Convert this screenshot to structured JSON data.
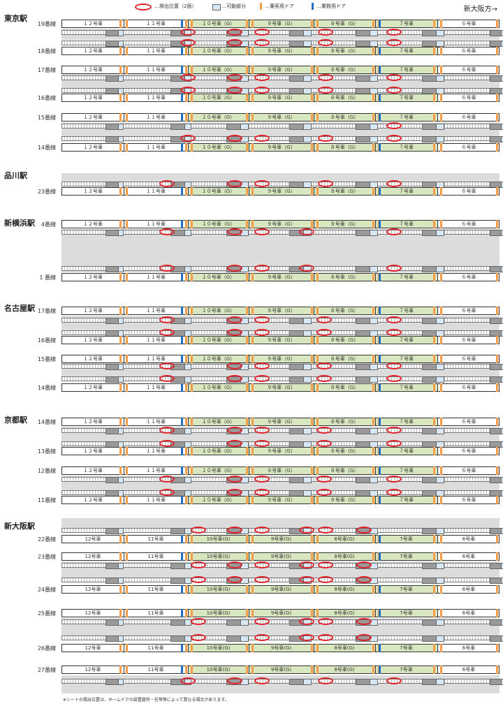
{
  "legend": {
    "exit_position": "…掲出位置（2面）",
    "movable_part": "…可動部分",
    "passenger_door": "…乗客用ドア",
    "staff_door": "…業務用ドア"
  },
  "direction": "新大阪方→",
  "footnote": "※シートの掲出位置は、ホームドアの設置箇所・柱等等によって異なる場合があります。",
  "cars": [
    "１２号車",
    "１１号車",
    "１０号車（G）",
    "９号車（G）",
    "８号車（G）",
    "７号車",
    "６号車"
  ],
  "cars_alt": [
    "12号車",
    "11号車",
    "10号車(G)",
    "9号車(G)",
    "8号車(G)",
    "7号車",
    "6号車"
  ],
  "stations": [
    {
      "name": "東京駅",
      "lines": [
        "19番線",
        "18番線",
        "17番線",
        "16番線",
        "15番線",
        "14番線"
      ]
    },
    {
      "name": "品川駅",
      "lines": [
        "23番線"
      ]
    },
    {
      "name": "新横浜駅",
      "lines": [
        "4番線",
        "1 番線"
      ]
    },
    {
      "name": "名古屋駅",
      "lines": [
        "17番線",
        "16番線",
        "15番線",
        "14番線"
      ]
    },
    {
      "name": "京都駅",
      "lines": [
        "14番線",
        "13番線",
        "12番線",
        "11番線"
      ]
    },
    {
      "name": "新大阪駅",
      "lines": [
        "22番線",
        "23番線",
        "24番線",
        "25番線",
        "26番線",
        "27番線"
      ]
    }
  ],
  "colors": {
    "green_car": "#d9e7c1",
    "passenger_door": "#f39c4a",
    "staff_door": "#1f6fc4",
    "mark": "#e0222a",
    "band": "#dcdcdc"
  }
}
